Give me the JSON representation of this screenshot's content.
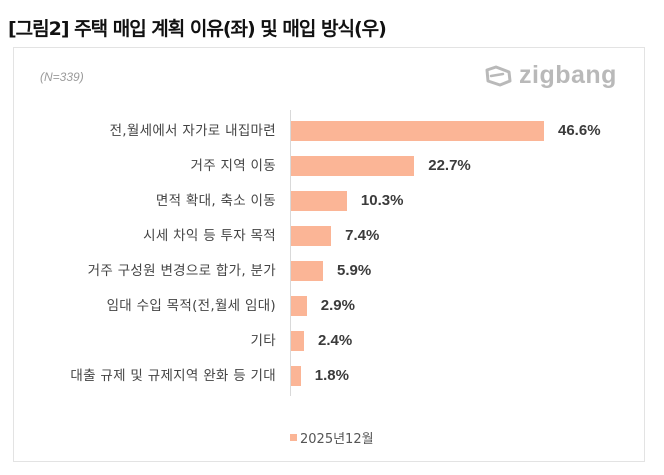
{
  "title": "[그림2] 주택 매입 계획 이유(좌) 및 매입 방식(우)",
  "sample_note": "(N=339)",
  "logo": {
    "icon": "zigbang-logo-icon",
    "text": "zigbang"
  },
  "colors": {
    "bar": "#fbb596",
    "value_text": "#3b3b3b",
    "logo": "#b9b9b9"
  },
  "legend": {
    "label": "2025년12월",
    "color": "#fbb596"
  },
  "chart_data": {
    "type": "bar",
    "orientation": "horizontal",
    "title": "주택 매입 계획 이유",
    "subtitle": "(N=339)",
    "xlabel": "",
    "ylabel": "",
    "categories": [
      "전,월세에서 자가로 내집마련",
      "거주 지역 이동",
      "면적 확대, 축소 이동",
      "시세 차익 등 투자 목적",
      "거주 구성원 변경으로 합가, 분가",
      "임대 수입 목적(전,월세 임대)",
      "기타",
      "대출 규제 및 규제지역 완화 등 기대"
    ],
    "series": [
      {
        "name": "2025년12월",
        "values": [
          46.6,
          22.7,
          10.3,
          7.4,
          5.9,
          2.9,
          2.4,
          1.8
        ]
      }
    ],
    "value_labels": [
      "46.6%",
      "22.7%",
      "10.3%",
      "7.4%",
      "5.9%",
      "2.9%",
      "2.4%",
      "1.8%"
    ],
    "unit": "%",
    "grid": false,
    "legend_position": "bottom"
  }
}
